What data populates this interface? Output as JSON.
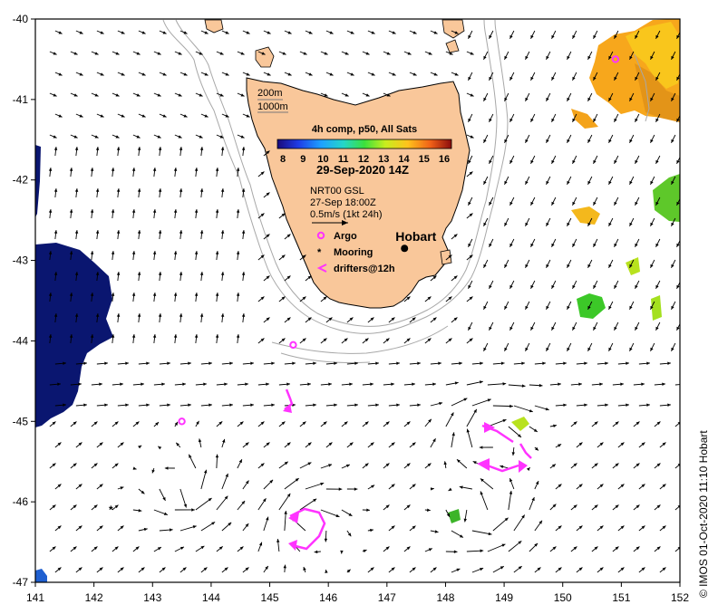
{
  "map": {
    "lon_range": [
      141,
      152
    ],
    "lat_range": [
      -47,
      -40
    ],
    "x_ticks": [
      "141",
      "142",
      "143",
      "144",
      "145",
      "146",
      "147",
      "148",
      "149",
      "150",
      "151",
      "152"
    ],
    "y_ticks": [
      "-40",
      "-41",
      "-42",
      "-43",
      "-44",
      "-45",
      "-46",
      "-47"
    ],
    "land_color": "#f9c79a",
    "ocean_color": "#ffffff",
    "cold_patch_color": "#0a1670"
  },
  "legend": {
    "depth_200": "200m",
    "depth_1000": "1000m",
    "sst_title": "4h comp, p50, All Sats",
    "colorbar_ticks": [
      "8",
      "9",
      "10",
      "11",
      "12",
      "13",
      "14",
      "15",
      "16"
    ],
    "date": "29-Sep-2020 14Z",
    "current_source": "NRT00 GSL",
    "current_date": "27-Sep 18:00Z",
    "current_scale": "0.5m/s (1kt 24h)",
    "argo": "Argo",
    "mooring": "Mooring",
    "drifters": "drifters@12h"
  },
  "places": {
    "hobart": "Hobart"
  },
  "markers": {
    "argo": [
      {
        "lon": 150.9,
        "lat": -40.5
      },
      {
        "lon": 145.4,
        "lat": -44.05
      },
      {
        "lon": 143.5,
        "lat": -45.0
      }
    ],
    "mooring": [
      {
        "lon": 142.3,
        "lat": -46.1
      }
    ],
    "hobart_point": {
      "lon": 147.3,
      "lat": -42.85
    }
  },
  "credit": "© IMOS 01-Oct-2020 11:10 Hobart"
}
